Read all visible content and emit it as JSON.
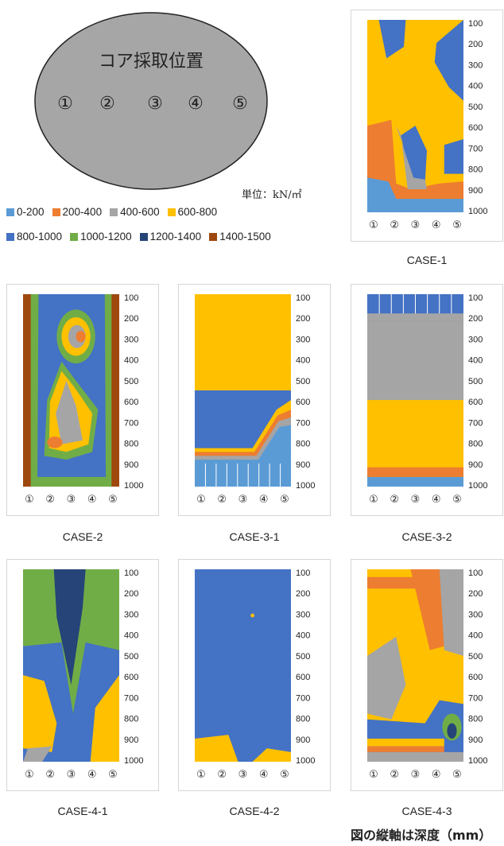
{
  "circle": {
    "title": "コア採取位置",
    "positions": [
      "①",
      "②",
      "③",
      "④",
      "⑤"
    ]
  },
  "unit_label": "単位：kN/㎡",
  "legend": [
    {
      "label": "0-200",
      "color": "#5b9bd5"
    },
    {
      "label": "200-400",
      "color": "#ed7d31"
    },
    {
      "label": "400-600",
      "color": "#a5a5a5"
    },
    {
      "label": "600-800",
      "color": "#ffc000"
    },
    {
      "label": "800-1000",
      "color": "#4472c4"
    },
    {
      "label": "1000-1200",
      "color": "#70ad47"
    },
    {
      "label": "1200-1400",
      "color": "#264478"
    },
    {
      "label": "1400-1500",
      "color": "#9e480e"
    }
  ],
  "depth_ticks": [
    "100",
    "200",
    "300",
    "400",
    "500",
    "600",
    "700",
    "800",
    "900",
    "1000"
  ],
  "position_ticks": [
    "①",
    "②",
    "③",
    "④",
    "⑤"
  ],
  "cases": [
    {
      "name": "CASE-1"
    },
    {
      "name": "CASE-2"
    },
    {
      "name": "CASE-3-1"
    },
    {
      "name": "CASE-3-2"
    },
    {
      "name": "CASE-4-1"
    },
    {
      "name": "CASE-4-2"
    },
    {
      "name": "CASE-4-3"
    }
  ],
  "footnote": "図の縦軸は深度（mm）"
}
